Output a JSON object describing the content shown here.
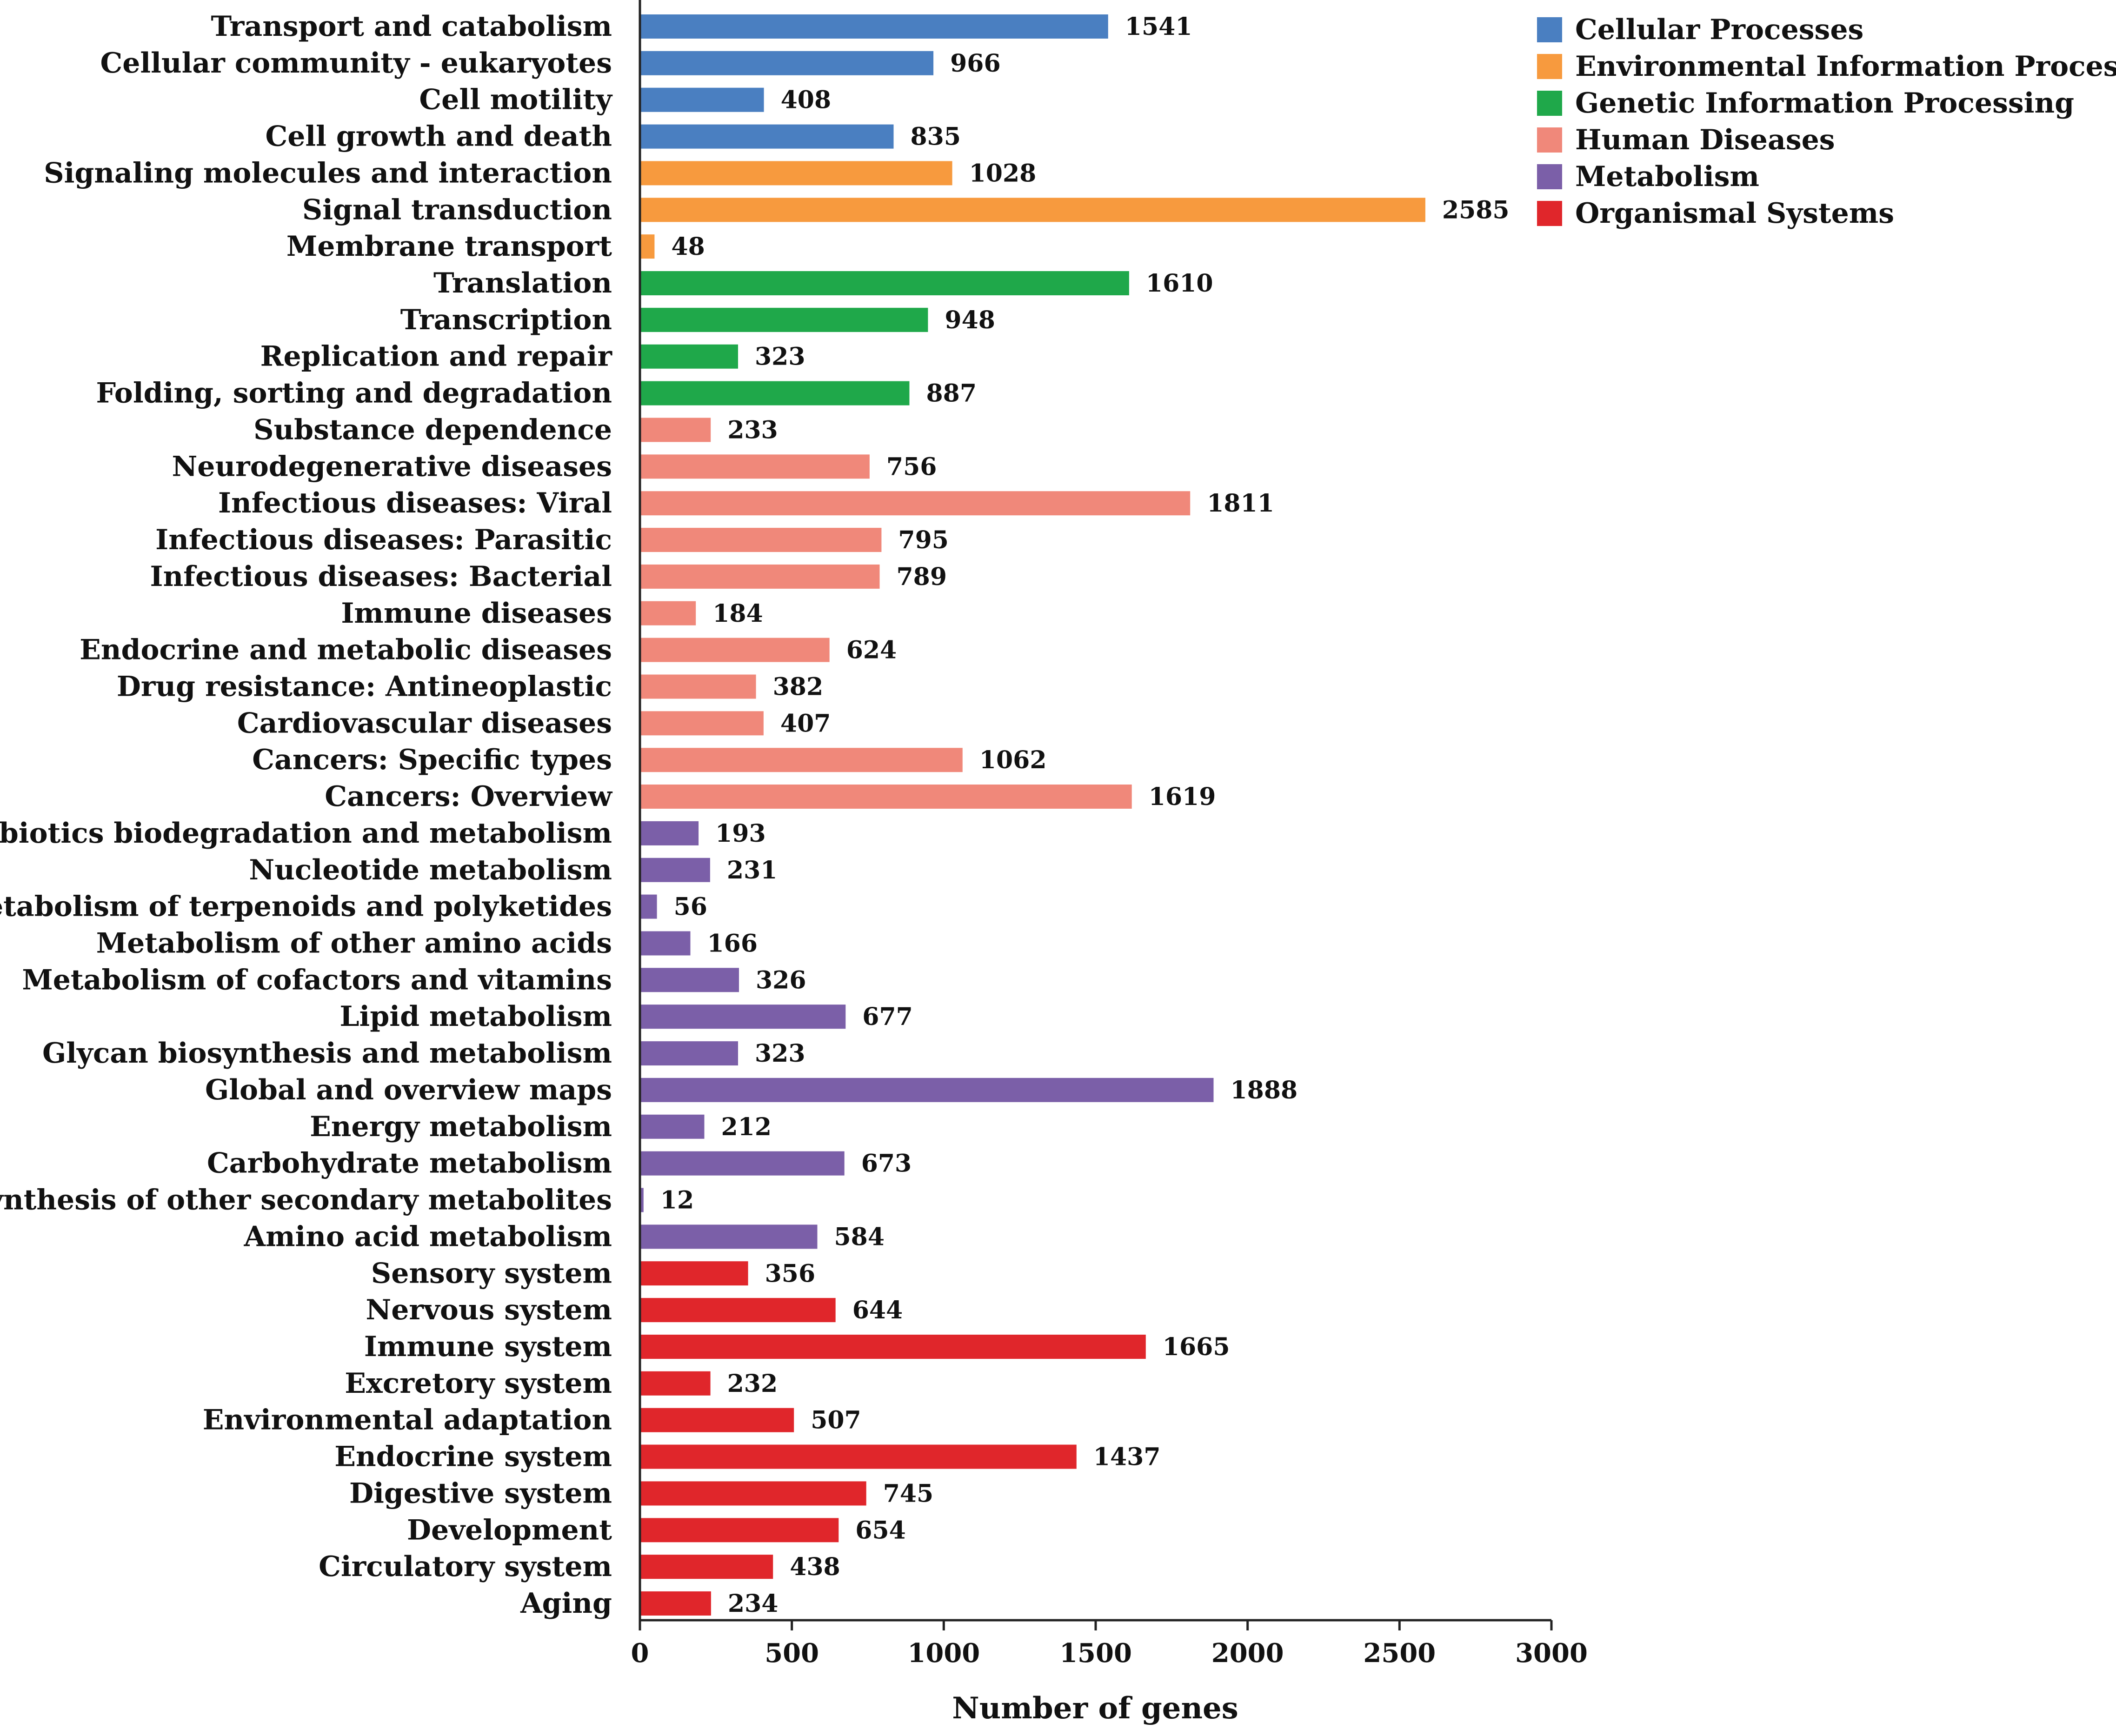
{
  "chart_data": {
    "type": "bar",
    "orientation": "horizontal",
    "title": "",
    "xlabel": "Number of genes",
    "ylabel": "",
    "xlim": [
      0,
      3000
    ],
    "xticks": [
      0,
      500,
      1000,
      1500,
      2000,
      2500,
      3000
    ],
    "legend_position": "top-right",
    "legend": [
      {
        "name": "Cellular Processes",
        "color": "#4a7fc1"
      },
      {
        "name": "Environmental Information Processing",
        "color": "#f79a3e"
      },
      {
        "name": "Genetic Information Processing",
        "color": "#1fa84a"
      },
      {
        "name": "Human Diseases",
        "color": "#f0887a"
      },
      {
        "name": "Metabolism",
        "color": "#7b5fa8"
      },
      {
        "name": "Organismal Systems",
        "color": "#e0262b"
      }
    ],
    "bars": [
      {
        "label": "Transport and catabolism",
        "value": 1541,
        "group": 0
      },
      {
        "label": "Cellular community - eukaryotes",
        "value": 966,
        "group": 0
      },
      {
        "label": "Cell motility",
        "value": 408,
        "group": 0
      },
      {
        "label": "Cell growth and death",
        "value": 835,
        "group": 0
      },
      {
        "label": "Signaling molecules and interaction",
        "value": 1028,
        "group": 1
      },
      {
        "label": "Signal transduction",
        "value": 2585,
        "group": 1
      },
      {
        "label": "Membrane transport",
        "value": 48,
        "group": 1
      },
      {
        "label": "Translation",
        "value": 1610,
        "group": 2
      },
      {
        "label": "Transcription",
        "value": 948,
        "group": 2
      },
      {
        "label": "Replication and repair",
        "value": 323,
        "group": 2
      },
      {
        "label": "Folding, sorting and degradation",
        "value": 887,
        "group": 2
      },
      {
        "label": "Substance dependence",
        "value": 233,
        "group": 3
      },
      {
        "label": "Neurodegenerative diseases",
        "value": 756,
        "group": 3
      },
      {
        "label": "Infectious diseases: Viral",
        "value": 1811,
        "group": 3
      },
      {
        "label": "Infectious diseases: Parasitic",
        "value": 795,
        "group": 3
      },
      {
        "label": "Infectious diseases: Bacterial",
        "value": 789,
        "group": 3
      },
      {
        "label": "Immune diseases",
        "value": 184,
        "group": 3
      },
      {
        "label": "Endocrine and metabolic diseases",
        "value": 624,
        "group": 3
      },
      {
        "label": "Drug resistance: Antineoplastic",
        "value": 382,
        "group": 3
      },
      {
        "label": "Cardiovascular diseases",
        "value": 407,
        "group": 3
      },
      {
        "label": "Cancers: Specific types",
        "value": 1062,
        "group": 3
      },
      {
        "label": "Cancers: Overview",
        "value": 1619,
        "group": 3
      },
      {
        "label": "Xenobiotics biodegradation and metabolism",
        "value": 193,
        "group": 4
      },
      {
        "label": "Nucleotide metabolism",
        "value": 231,
        "group": 4
      },
      {
        "label": "Metabolism of terpenoids and polyketides",
        "value": 56,
        "group": 4
      },
      {
        "label": "Metabolism of other amino acids",
        "value": 166,
        "group": 4
      },
      {
        "label": "Metabolism of cofactors and vitamins",
        "value": 326,
        "group": 4
      },
      {
        "label": "Lipid metabolism",
        "value": 677,
        "group": 4
      },
      {
        "label": "Glycan biosynthesis and metabolism",
        "value": 323,
        "group": 4
      },
      {
        "label": "Global and overview maps",
        "value": 1888,
        "group": 4
      },
      {
        "label": "Energy metabolism",
        "value": 212,
        "group": 4
      },
      {
        "label": "Carbohydrate metabolism",
        "value": 673,
        "group": 4
      },
      {
        "label": "Biosynthesis of other secondary metabolites",
        "value": 12,
        "group": 4
      },
      {
        "label": "Amino acid metabolism",
        "value": 584,
        "group": 4
      },
      {
        "label": "Sensory system",
        "value": 356,
        "group": 5
      },
      {
        "label": "Nervous system",
        "value": 644,
        "group": 5
      },
      {
        "label": "Immune system",
        "value": 1665,
        "group": 5
      },
      {
        "label": "Excretory system",
        "value": 232,
        "group": 5
      },
      {
        "label": "Environmental adaptation",
        "value": 507,
        "group": 5
      },
      {
        "label": "Endocrine system",
        "value": 1437,
        "group": 5
      },
      {
        "label": "Digestive system",
        "value": 745,
        "group": 5
      },
      {
        "label": "Development",
        "value": 654,
        "group": 5
      },
      {
        "label": "Circulatory system",
        "value": 438,
        "group": 5
      },
      {
        "label": "Aging",
        "value": 234,
        "group": 5
      }
    ]
  }
}
